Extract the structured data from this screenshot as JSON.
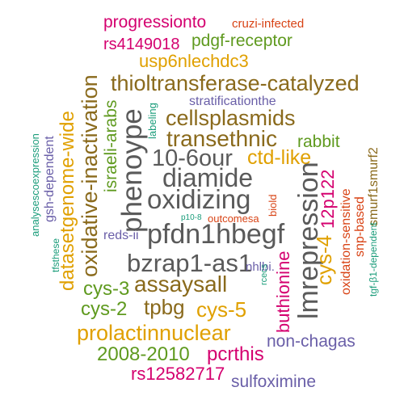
{
  "colors": {
    "brown": "#8a6a1c",
    "gray": "#5a5a5a",
    "orange": "#e0a000",
    "green": "#5f9a1f",
    "magenta": "#d4006f",
    "purple": "#6a5fa8",
    "teal": "#1a9c7a",
    "red": "#d84315"
  },
  "words": {
    "progressionto": "progressionto",
    "cruzi_infected": "cruzi-infected",
    "rs4149018": "rs4149018",
    "pdgf_receptor": "pdgf-receptor",
    "usp6nlechdc3": "usp6nlechdc3",
    "thioltransferase_catalyzed": "thioltransferase-catalyzed",
    "oxidative_inactivation": "oxidative-inactivation",
    "datasetgenome_wide": "datasetgenome-wide",
    "israeli_arabs": "israeli-arabs",
    "gsh_dependent": "gsh-dependent",
    "analysescoexpression": "analysescoexpression",
    "tfsthese": "tfsthese",
    "stratificationthe": "stratificationthe",
    "labeling": "labeling",
    "cellsplasmids": "cellsplasmids",
    "transethnic": "transethnic",
    "rabbit": "rabbit",
    "phenoype": "phenoype",
    "ten_6our": "10-6our",
    "ctd_like": "ctd-like",
    "diamide": "diamide",
    "oxidizing": "oxidizing",
    "lmrepression": "lmrepression",
    "twelve_p122": "12p122",
    "oxidation_sensitive": "oxidation-sensitive",
    "snp_based": "snp-based",
    "smurf1smurf2": "smurf1smurf2",
    "tgf_b1_dependent": "tgf-β1-dependent",
    "biold": "biold",
    "p10_8": "p10-8",
    "outcomesa": "outcomesa",
    "pfdn1hbegf": "pfdn1hbegf",
    "reds_ii": "reds-ii",
    "cys_4": "cys-4",
    "bzrap1_as1": "bzrap1-as1",
    "nhlbi": "nhlbi.",
    "rcecs": "rcecs",
    "buthionine": "buthionine",
    "cys_3": "cys-3",
    "assaysall": "assaysall",
    "cys_2": "cys-2",
    "tpbg": "tpbg",
    "cys_5": "cys-5",
    "prolactinnuclear": "prolactinnuclear",
    "non_chagas": "non-chagas",
    "y2008_2010": "2008-2010",
    "pcrthis": "pcrthis",
    "rs12582717": "rs12582717",
    "sulfoximine": "sulfoximine"
  }
}
